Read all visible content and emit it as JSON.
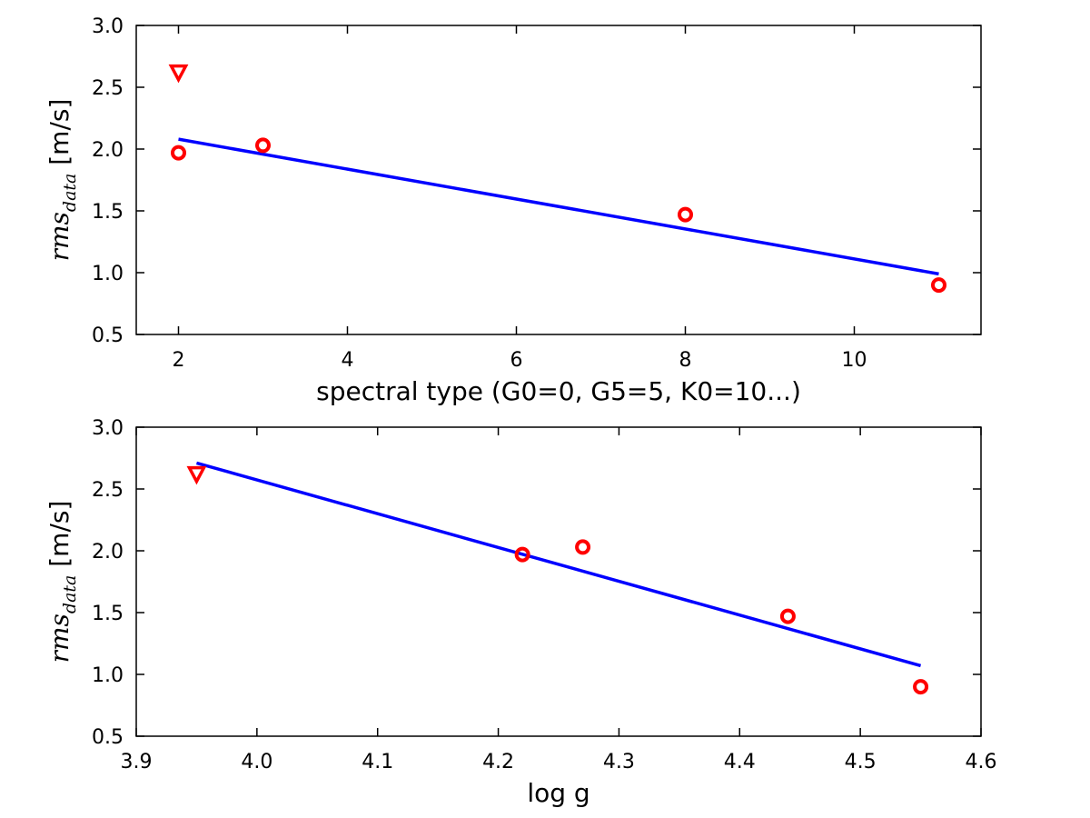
{
  "chart_data": [
    {
      "type": "scatter",
      "xlabel": "spectral type (G0=0, G5=5, K0=10...)",
      "ylabel": {
        "symbol": "rms",
        "subscript": "data",
        "unit": "[m/s]"
      },
      "xlim": [
        1.5,
        11.5
      ],
      "ylim": [
        0.5,
        3.0
      ],
      "xticks": [
        2,
        4,
        6,
        8,
        10
      ],
      "xtick_labels": [
        "2",
        "4",
        "6",
        "8",
        "10"
      ],
      "yticks": [
        0.5,
        1.0,
        1.5,
        2.0,
        2.5,
        3.0
      ],
      "ytick_labels": [
        "0.5",
        "1.0",
        "1.5",
        "2.0",
        "2.5",
        "3.0"
      ],
      "grid": false,
      "series": [
        {
          "marker": "circle",
          "color": "#ff0000",
          "x": [
            2,
            3,
            8,
            11
          ],
          "y": [
            1.97,
            2.03,
            1.47,
            0.9
          ]
        },
        {
          "marker": "triangle-down",
          "color": "#ff0000",
          "x": [
            2
          ],
          "y": [
            2.62
          ]
        }
      ],
      "fit_line": {
        "color": "#0000ff",
        "x": [
          2,
          11
        ],
        "y": [
          2.08,
          0.99
        ]
      }
    },
    {
      "type": "scatter",
      "xlabel": "log g",
      "ylabel": {
        "symbol": "rms",
        "subscript": "data",
        "unit": "[m/s]"
      },
      "xlim": [
        3.9,
        4.6
      ],
      "ylim": [
        0.5,
        3.0
      ],
      "xticks": [
        3.9,
        4.0,
        4.1,
        4.2,
        4.3,
        4.4,
        4.5,
        4.6
      ],
      "xtick_labels": [
        "3.9",
        "4.0",
        "4.1",
        "4.2",
        "4.3",
        "4.4",
        "4.5",
        "4.6"
      ],
      "yticks": [
        0.5,
        1.0,
        1.5,
        2.0,
        2.5,
        3.0
      ],
      "ytick_labels": [
        "0.5",
        "1.0",
        "1.5",
        "2.0",
        "2.5",
        "3.0"
      ],
      "grid": false,
      "series": [
        {
          "marker": "circle",
          "color": "#ff0000",
          "x": [
            4.22,
            4.27,
            4.44,
            4.55
          ],
          "y": [
            1.97,
            2.03,
            1.47,
            0.9
          ]
        },
        {
          "marker": "triangle-down",
          "color": "#ff0000",
          "x": [
            3.95
          ],
          "y": [
            2.62
          ]
        }
      ],
      "fit_line": {
        "color": "#0000ff",
        "x": [
          3.95,
          4.55
        ],
        "y": [
          2.71,
          1.07
        ]
      }
    }
  ]
}
